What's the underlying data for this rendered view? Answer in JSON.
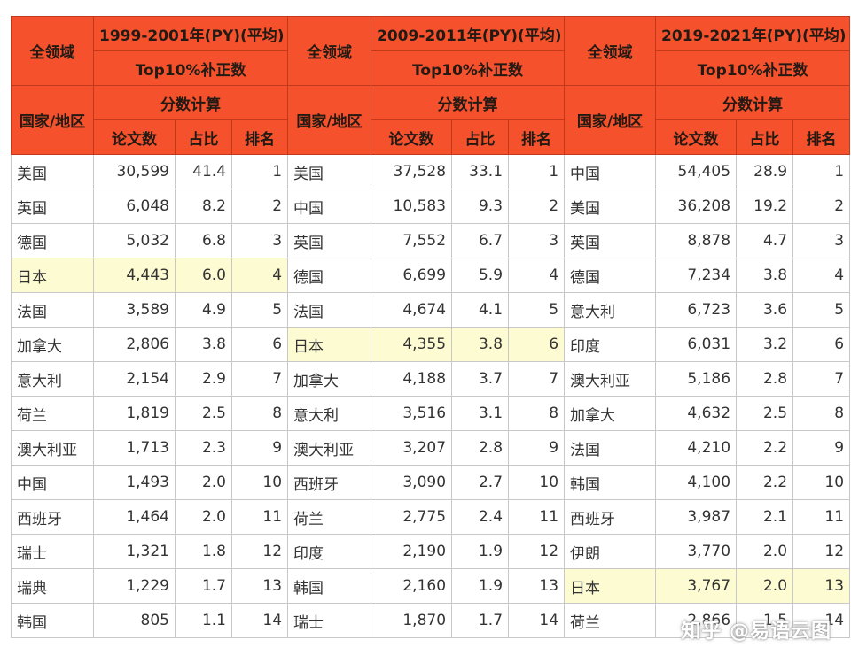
{
  "header": {
    "domain_label": "全领域",
    "country_label": "国家/地区",
    "metric_label": "Top10%补正数",
    "method_label": "分数计算",
    "papers_label": "论文数",
    "share_label": "占比",
    "rank_label": "排名",
    "periods": [
      "1999-2001年(PY)(平均)",
      "2009-2011年(PY)(平均)",
      "2019-2021年(PY)(平均)"
    ]
  },
  "highlight_color": "#fdfbd2",
  "header_color": "#f4512c",
  "rows": [
    [
      [
        "美国",
        "30,599",
        "41.4",
        "1"
      ],
      [
        "美国",
        "37,528",
        "33.1",
        "1"
      ],
      [
        "中国",
        "54,405",
        "28.9",
        "1"
      ]
    ],
    [
      [
        "英国",
        "6,048",
        "8.2",
        "2"
      ],
      [
        "中国",
        "10,583",
        "9.3",
        "2"
      ],
      [
        "美国",
        "36,208",
        "19.2",
        "2"
      ]
    ],
    [
      [
        "德国",
        "5,032",
        "6.8",
        "3"
      ],
      [
        "英国",
        "7,552",
        "6.7",
        "3"
      ],
      [
        "英国",
        "8,878",
        "4.7",
        "3"
      ]
    ],
    [
      [
        "日本",
        "4,443",
        "6.0",
        "4"
      ],
      [
        "德国",
        "6,699",
        "5.9",
        "4"
      ],
      [
        "德国",
        "7,234",
        "3.8",
        "4"
      ]
    ],
    [
      [
        "法国",
        "3,589",
        "4.9",
        "5"
      ],
      [
        "法国",
        "4,674",
        "4.1",
        "5"
      ],
      [
        "意大利",
        "6,723",
        "3.6",
        "5"
      ]
    ],
    [
      [
        "加拿大",
        "2,806",
        "3.8",
        "6"
      ],
      [
        "日本",
        "4,355",
        "3.8",
        "6"
      ],
      [
        "印度",
        "6,031",
        "3.2",
        "6"
      ]
    ],
    [
      [
        "意大利",
        "2,154",
        "2.9",
        "7"
      ],
      [
        "加拿大",
        "4,188",
        "3.7",
        "7"
      ],
      [
        "澳大利亚",
        "5,186",
        "2.8",
        "7"
      ]
    ],
    [
      [
        "荷兰",
        "1,819",
        "2.5",
        "8"
      ],
      [
        "意大利",
        "3,516",
        "3.1",
        "8"
      ],
      [
        "加拿大",
        "4,632",
        "2.5",
        "8"
      ]
    ],
    [
      [
        "澳大利亚",
        "1,713",
        "2.3",
        "9"
      ],
      [
        "澳大利亚",
        "3,207",
        "2.8",
        "9"
      ],
      [
        "法国",
        "4,210",
        "2.2",
        "9"
      ]
    ],
    [
      [
        "中国",
        "1,493",
        "2.0",
        "10"
      ],
      [
        "西班牙",
        "3,090",
        "2.7",
        "10"
      ],
      [
        "韩国",
        "4,100",
        "2.2",
        "10"
      ]
    ],
    [
      [
        "西班牙",
        "1,464",
        "2.0",
        "11"
      ],
      [
        "荷兰",
        "2,775",
        "2.4",
        "11"
      ],
      [
        "西班牙",
        "3,987",
        "2.1",
        "11"
      ]
    ],
    [
      [
        "瑞士",
        "1,321",
        "1.8",
        "12"
      ],
      [
        "印度",
        "2,190",
        "1.9",
        "12"
      ],
      [
        "伊朗",
        "3,770",
        "2.0",
        "12"
      ]
    ],
    [
      [
        "瑞典",
        "1,229",
        "1.7",
        "13"
      ],
      [
        "韩国",
        "2,160",
        "1.9",
        "13"
      ],
      [
        "日本",
        "3,767",
        "2.0",
        "13"
      ]
    ],
    [
      [
        "韩国",
        "805",
        "1.1",
        "14"
      ],
      [
        "瑞士",
        "1,870",
        "1.7",
        "14"
      ],
      [
        "荷兰",
        "2,866",
        "1.5",
        "14"
      ]
    ]
  ],
  "highlighted_cells": [
    [
      3,
      0
    ],
    [
      5,
      1
    ],
    [
      12,
      2
    ]
  ],
  "watermark": "知乎 @易语云图"
}
